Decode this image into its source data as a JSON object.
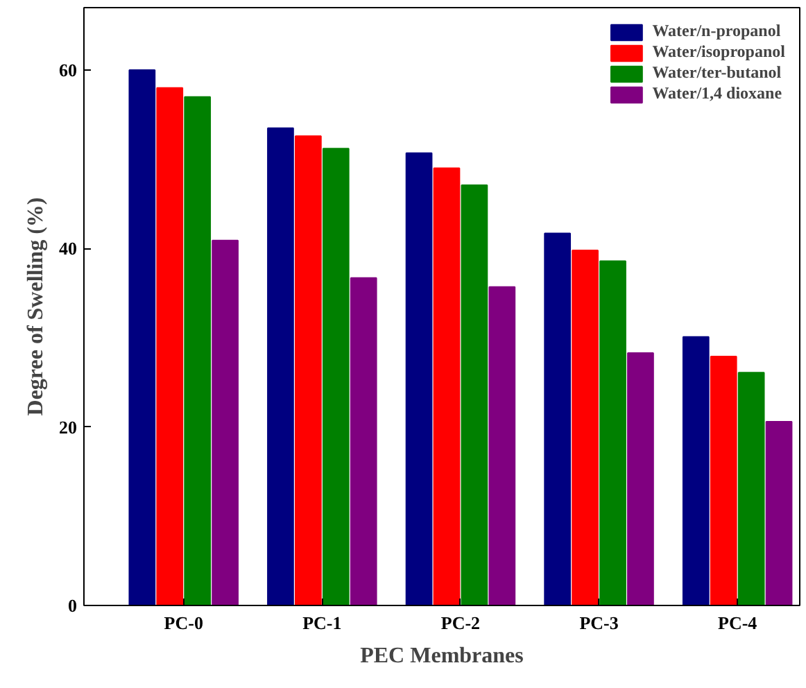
{
  "chart_data": {
    "type": "bar",
    "xlabel": "PEC Membranes",
    "ylabel": "Degree of Swelling (%)",
    "categories": [
      "PC-0",
      "PC-1",
      "PC-2",
      "PC-3",
      "PC-4"
    ],
    "series": [
      {
        "name": "Water/n-propanol",
        "color": "#000080",
        "values": [
          60,
          53.5,
          50.7,
          41.7,
          30.1
        ]
      },
      {
        "name": "Water/isopropanol",
        "color": "#ff0000",
        "values": [
          58,
          52.6,
          49,
          39.8,
          27.9
        ]
      },
      {
        "name": "Water/ter-butanol",
        "color": "#008000",
        "values": [
          57,
          51.2,
          47.1,
          38.6,
          26.1
        ]
      },
      {
        "name": "Water/1,4 dioxane",
        "color": "#800080",
        "values": [
          40.9,
          36.7,
          35.7,
          28.3,
          20.6
        ]
      }
    ],
    "ylim": [
      0,
      67
    ],
    "yticks": [
      0,
      20,
      40,
      60
    ],
    "grid": false,
    "legend": "top right"
  }
}
